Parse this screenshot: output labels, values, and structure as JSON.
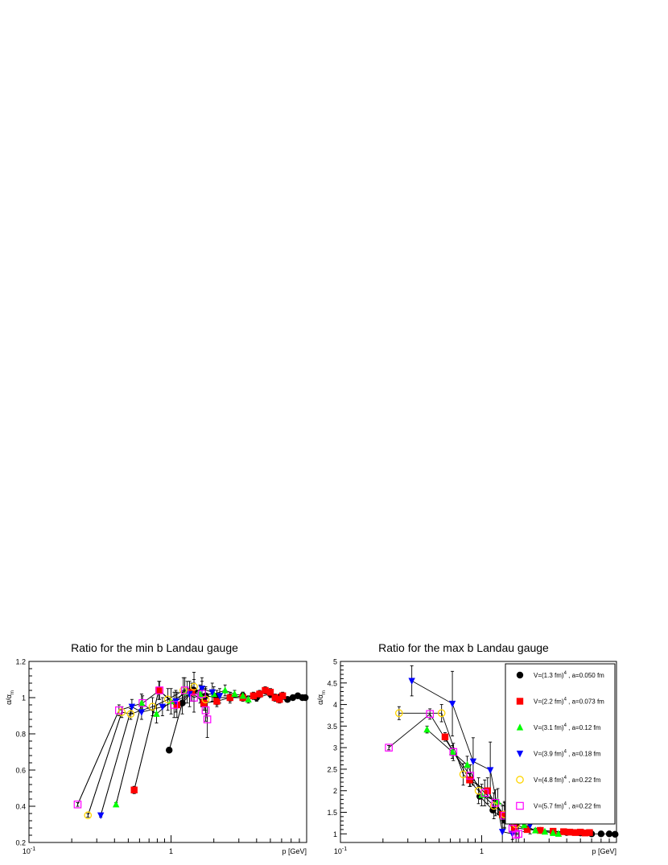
{
  "chart_data": [
    {
      "type": "scatter",
      "title": "Ratio for the min b Landau gauge",
      "xlabel": "p [GeV]",
      "ylabel": "α/α",
      "ylabel_sub": "m",
      "x_scale": "log",
      "xlim": [
        0.1,
        9.0
      ],
      "ylim": [
        0.2,
        1.2
      ],
      "x_tick_labels": [
        {
          "value": 0.1,
          "base": "10",
          "exp": "-1"
        },
        {
          "value": 1,
          "base": "1",
          "exp": ""
        }
      ],
      "y_ticks": [
        0.2,
        0.4,
        0.6,
        0.8,
        1.0,
        1.2
      ],
      "y_tick_labels": [
        "0.2",
        "0.4",
        "0.6",
        "0.8",
        "1",
        "1.2"
      ],
      "connectors": [
        [
          [
            0.97,
            0.71
          ],
          [
            1.2,
            0.97
          ]
        ],
        [
          [
            0.55,
            0.49
          ],
          [
            0.82,
            1.04
          ]
        ],
        [
          [
            0.41,
            0.41
          ],
          [
            0.62,
            0.97
          ]
        ],
        [
          [
            0.32,
            0.35
          ],
          [
            0.53,
            0.95
          ]
        ],
        [
          [
            0.26,
            0.35
          ],
          [
            0.45,
            0.92
          ]
        ],
        [
          [
            0.22,
            0.41
          ],
          [
            0.43,
            0.93
          ]
        ]
      ],
      "series": [
        {
          "name": "V=(1.3 fm)",
          "exp": "4",
          "suffix": " , a=0.050 fm",
          "marker": "circle",
          "color": "#000000",
          "points": [
            [
              0.97,
              0.71,
              0.015
            ],
            [
              1.2,
              0.97,
              0.06
            ],
            [
              1.45,
              1.04,
              0.06
            ],
            [
              1.75,
              1.01,
              0.05
            ],
            [
              2.1,
              1.0,
              0.04
            ],
            [
              2.6,
              1.0,
              0.03
            ],
            [
              3.2,
              1.01,
              0.02
            ],
            [
              4.0,
              1.0,
              0.02
            ],
            [
              5.0,
              1.02,
              0.02
            ],
            [
              5.8,
              1.0,
              0.02
            ],
            [
              6.6,
              0.99,
              0.01
            ],
            [
              7.2,
              1.0,
              0.01
            ],
            [
              7.8,
              1.01,
              0.01
            ],
            [
              8.4,
              1.0,
              0.01
            ],
            [
              8.8,
              1.0,
              0.01
            ]
          ]
        },
        {
          "name": "V=(2.2 fm)",
          "exp": "4",
          "suffix": " , a=0.073 fm",
          "marker": "square",
          "color": "#ff0000",
          "points": [
            [
              0.55,
              0.49,
              0.02
            ],
            [
              0.82,
              1.04,
              0.05
            ],
            [
              1.1,
              0.96,
              0.07
            ],
            [
              1.4,
              1.03,
              0.05
            ],
            [
              1.7,
              0.97,
              0.04
            ],
            [
              2.1,
              0.98,
              0.03
            ],
            [
              2.6,
              1.0,
              0.02
            ],
            [
              3.2,
              1.0,
              0.02
            ],
            [
              3.8,
              1.01,
              0.02
            ],
            [
              4.2,
              1.02,
              0.02
            ],
            [
              4.6,
              1.04,
              0.02
            ],
            [
              5.0,
              1.03,
              0.02
            ],
            [
              5.4,
              1.0,
              0.02
            ],
            [
              5.8,
              0.99,
              0.02
            ],
            [
              6.1,
              1.01,
              0.02
            ]
          ]
        },
        {
          "name": "V=(3.1 fm)",
          "exp": "4",
          "suffix": " , a=0.12 fm",
          "marker": "triangle-up",
          "color": "#00ff00",
          "points": [
            [
              0.41,
              0.41,
              0.01
            ],
            [
              0.62,
              0.97,
              0.05
            ],
            [
              0.79,
              0.91,
              0.05
            ],
            [
              1.0,
              0.98,
              0.07
            ],
            [
              1.3,
              1.03,
              0.06
            ],
            [
              1.6,
              1.02,
              0.05
            ],
            [
              2.0,
              1.02,
              0.04
            ],
            [
              2.4,
              1.04,
              0.03
            ],
            [
              2.8,
              1.02,
              0.02
            ],
            [
              3.2,
              1.01,
              0.02
            ],
            [
              3.5,
              0.99,
              0.02
            ]
          ]
        },
        {
          "name": "V=(3.9 fm)",
          "exp": "4",
          "suffix": " , a=0.18 fm",
          "marker": "triangle-down",
          "color": "#0000ff",
          "points": [
            [
              0.32,
              0.35,
              0.01
            ],
            [
              0.53,
              0.95,
              0.04
            ],
            [
              0.62,
              0.92,
              0.04
            ],
            [
              0.87,
              0.95,
              0.05
            ],
            [
              1.08,
              0.98,
              0.06
            ],
            [
              1.35,
              1.02,
              0.07
            ],
            [
              1.65,
              1.05,
              0.06
            ],
            [
              1.95,
              1.03,
              0.05
            ],
            [
              2.2,
              1.01,
              0.04
            ]
          ]
        },
        {
          "name": "V=(4.8 fm)",
          "exp": "4",
          "suffix": " , a=0.22 fm",
          "marker": "circle-open",
          "color": "#ffd500",
          "points": [
            [
              0.26,
              0.35,
              0.01
            ],
            [
              0.45,
              0.92,
              0.03
            ],
            [
              0.52,
              0.91,
              0.03
            ],
            [
              0.74,
              0.95,
              0.05
            ],
            [
              0.95,
              0.99,
              0.06
            ],
            [
              1.22,
              1.04,
              0.07
            ],
            [
              1.45,
              1.06,
              0.08
            ],
            [
              1.75,
              0.99,
              0.06
            ]
          ]
        },
        {
          "name": "V=(5.7 fm)",
          "exp": "4",
          "suffix": " , a=0.22 fm",
          "marker": "square-open",
          "color": "#ff00ff",
          "points": [
            [
              0.22,
              0.41,
              0.01
            ],
            [
              0.43,
              0.93,
              0.03
            ],
            [
              0.63,
              0.97,
              0.04
            ],
            [
              0.83,
              1.04,
              0.05
            ],
            [
              1.05,
              0.96,
              0.07
            ],
            [
              1.25,
              1.04,
              0.07
            ],
            [
              1.45,
              1.0,
              0.08
            ],
            [
              1.65,
              1.02,
              0.07
            ],
            [
              1.75,
              0.93,
              0.06
            ],
            [
              1.8,
              0.88,
              0.1
            ]
          ]
        }
      ]
    },
    {
      "type": "scatter",
      "title": "Ratio for the max b Landau gauge",
      "xlabel": "p [GeV]",
      "ylabel": "α/α",
      "ylabel_sub": "m",
      "x_scale": "log",
      "xlim": [
        0.1,
        9.0
      ],
      "ylim": [
        0.8,
        5.0
      ],
      "x_tick_labels": [
        {
          "value": 0.1,
          "base": "10",
          "exp": "-1"
        },
        {
          "value": 1,
          "base": "1",
          "exp": ""
        }
      ],
      "y_ticks": [
        1,
        1.5,
        2,
        2.5,
        3,
        3.5,
        4,
        4.5,
        5
      ],
      "y_tick_labels": [
        "1",
        "1.5",
        "2",
        "2.5",
        "3",
        "3.5",
        "4",
        "4.5",
        "5"
      ],
      "legend_position": "top-right",
      "series": [
        {
          "name": "V=(1.3 fm)",
          "exp": "4",
          "suffix": " , a=0.050 fm",
          "marker": "circle",
          "color": "#000000",
          "points": [
            [
              0.97,
              1.87,
              0.05
            ],
            [
              1.2,
              1.55,
              0.06
            ],
            [
              1.45,
              1.32,
              0.06
            ],
            [
              1.75,
              1.2,
              0.05
            ],
            [
              2.1,
              1.12,
              0.04
            ],
            [
              2.6,
              1.08,
              0.03
            ],
            [
              3.2,
              1.05,
              0.02
            ],
            [
              4.0,
              1.03,
              0.02
            ],
            [
              5.0,
              1.02,
              0.02
            ],
            [
              6.0,
              1.0,
              0.02
            ],
            [
              7.0,
              1.0,
              0.01
            ],
            [
              8.0,
              1.0,
              0.01
            ],
            [
              8.8,
              0.99,
              0.01
            ]
          ]
        },
        {
          "name": "V=(2.2 fm)",
          "exp": "4",
          "suffix": " , a=0.073 fm",
          "marker": "square",
          "color": "#ff0000",
          "points": [
            [
              0.55,
              3.25,
              0.1
            ],
            [
              0.82,
              2.25,
              0.15
            ],
            [
              1.1,
              2.0,
              0.3
            ],
            [
              1.4,
              1.45,
              0.2
            ],
            [
              1.7,
              1.15,
              0.15
            ],
            [
              2.1,
              1.1,
              0.05
            ],
            [
              2.6,
              1.08,
              0.03
            ],
            [
              3.2,
              1.06,
              0.02
            ],
            [
              3.8,
              1.05,
              0.02
            ],
            [
              4.2,
              1.04,
              0.02
            ],
            [
              4.6,
              1.03,
              0.02
            ],
            [
              5.0,
              1.04,
              0.02
            ],
            [
              5.4,
              1.02,
              0.02
            ],
            [
              5.8,
              1.03,
              0.02
            ]
          ]
        },
        {
          "name": "V=(3.1 fm)",
          "exp": "4",
          "suffix": " , a=0.12 fm",
          "marker": "triangle-up",
          "color": "#00ff00",
          "points": [
            [
              0.41,
              3.42,
              0.08
            ],
            [
              0.62,
              2.9,
              0.15
            ],
            [
              0.79,
              2.6,
              0.2
            ],
            [
              1.0,
              1.9,
              0.25
            ],
            [
              1.3,
              1.75,
              0.3
            ],
            [
              1.6,
              1.55,
              0.3
            ],
            [
              2.0,
              1.2,
              0.15
            ],
            [
              2.4,
              1.08,
              0.05
            ],
            [
              2.8,
              1.05,
              0.03
            ],
            [
              3.2,
              1.02,
              0.03
            ],
            [
              3.5,
              1.0,
              0.02
            ]
          ]
        },
        {
          "name": "V=(3.9 fm)",
          "exp": "4",
          "suffix": " , a=0.18 fm",
          "marker": "triangle-down",
          "color": "#0000ff",
          "points": [
            [
              0.32,
              4.55,
              0.35
            ],
            [
              0.62,
              4.02,
              0.75
            ],
            [
              0.87,
              2.68,
              0.55
            ],
            [
              1.15,
              2.48,
              0.65
            ],
            [
              1.4,
              1.05,
              0.25
            ],
            [
              1.65,
              1.0,
              0.2
            ],
            [
              1.95,
              1.5,
              0.35
            ],
            [
              2.2,
              1.2,
              0.2
            ]
          ]
        },
        {
          "name": "V=(4.8 fm)",
          "exp": "4",
          "suffix": " , a=0.22 fm",
          "marker": "circle-open",
          "color": "#ffd500",
          "points": [
            [
              0.26,
              3.8,
              0.15
            ],
            [
              0.52,
              3.8,
              0.2
            ],
            [
              0.74,
              2.38,
              0.25
            ],
            [
              0.95,
              2.0,
              0.3
            ],
            [
              1.22,
              1.65,
              0.3
            ],
            [
              1.45,
              1.45,
              0.3
            ],
            [
              1.75,
              1.22,
              0.2
            ]
          ]
        },
        {
          "name": "V=(5.7 fm)",
          "exp": "4",
          "suffix": " , a=0.22 fm",
          "marker": "square-open",
          "color": "#ff00ff",
          "points": [
            [
              0.22,
              3.0,
              0.05
            ],
            [
              0.43,
              3.78,
              0.12
            ],
            [
              0.63,
              2.9,
              0.2
            ],
            [
              0.83,
              2.35,
              0.25
            ],
            [
              1.05,
              1.95,
              0.3
            ],
            [
              1.25,
              1.72,
              0.3
            ],
            [
              1.45,
              1.42,
              0.3
            ],
            [
              1.65,
              1.12,
              0.25
            ],
            [
              1.75,
              0.98,
              0.2
            ],
            [
              1.82,
              1.0,
              0.2
            ]
          ]
        }
      ]
    }
  ]
}
